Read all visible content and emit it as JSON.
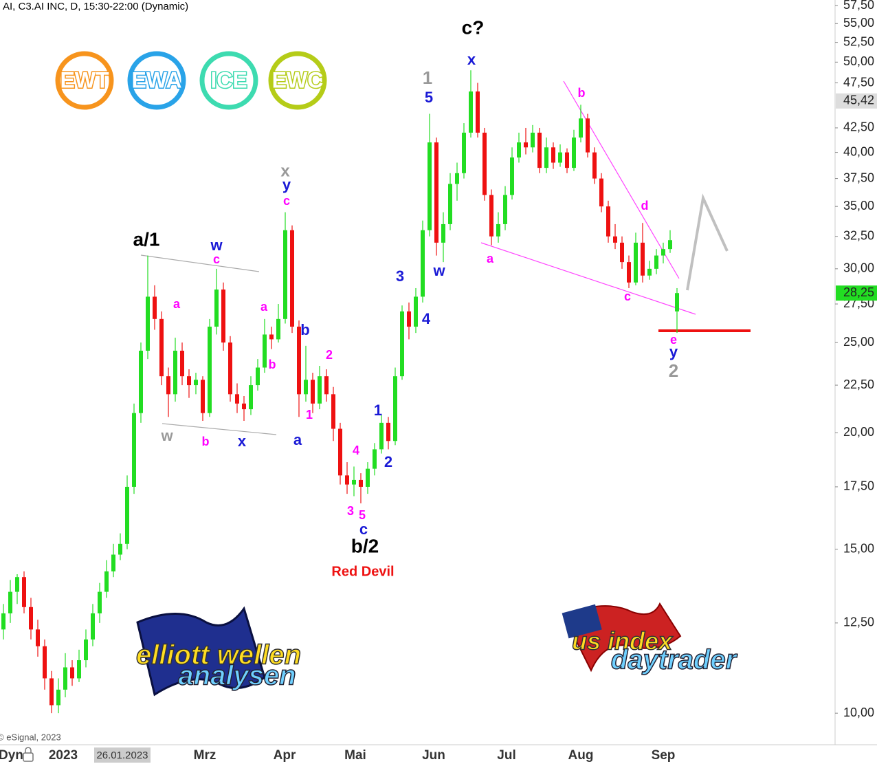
{
  "chart_data": {
    "type": "candlestick",
    "title": "AI, C3.AI INC, D, 15:30-22:00 (Dynamic)",
    "source": "© eSignal, 2023",
    "log_scale": true,
    "grid": false,
    "up_color": "#22dd22",
    "down_color": "#ee1111",
    "ylim": [
      9.25,
      58.3
    ],
    "yticks": [
      {
        "value": 10,
        "label": "10,00"
      },
      {
        "value": 12.5,
        "label": "12,50"
      },
      {
        "value": 15,
        "label": "15,00"
      },
      {
        "value": 17.5,
        "label": "17,50"
      },
      {
        "value": 20,
        "label": "20,00"
      },
      {
        "value": 22.5,
        "label": "22,50"
      },
      {
        "value": 25,
        "label": "25,00"
      },
      {
        "value": 27.5,
        "label": "27,50"
      },
      {
        "value": 30,
        "label": "30,00"
      },
      {
        "value": 32.5,
        "label": "32,50"
      },
      {
        "value": 35,
        "label": "35,00"
      },
      {
        "value": 37.5,
        "label": "37,50"
      },
      {
        "value": 40,
        "label": "40,00"
      },
      {
        "value": 42.5,
        "label": "42,50"
      },
      {
        "value": 47.5,
        "label": "47,50"
      },
      {
        "value": 50,
        "label": "50,00"
      },
      {
        "value": 52.5,
        "label": "52,50"
      },
      {
        "value": 55,
        "label": "55,00"
      },
      {
        "value": 57.5,
        "label": "57,50"
      }
    ],
    "price_markers": [
      {
        "value": 45.42,
        "label": "45,42",
        "color": "#dddddd"
      },
      {
        "value": 28.25,
        "label": "28,25",
        "color": "#22dd22"
      }
    ],
    "xticks": [
      "Dyn",
      "2023",
      "26.01.2023",
      "Mrz",
      "Apr",
      "Mai",
      "Jun",
      "Jul",
      "Aug",
      "Sep"
    ],
    "ohlc": [
      [
        12.3,
        13.1,
        12.0,
        12.8
      ],
      [
        12.8,
        13.9,
        12.5,
        13.5
      ],
      [
        13.5,
        14.1,
        13.1,
        14.0
      ],
      [
        14.0,
        14.2,
        12.8,
        13.0
      ],
      [
        13.0,
        13.3,
        12.0,
        12.3
      ],
      [
        12.3,
        12.6,
        11.5,
        11.8
      ],
      [
        11.8,
        12.0,
        10.6,
        10.9
      ],
      [
        10.9,
        11.1,
        10.0,
        10.2
      ],
      [
        10.2,
        10.9,
        10.0,
        10.6
      ],
      [
        10.6,
        11.6,
        10.4,
        11.2
      ],
      [
        11.2,
        11.4,
        10.7,
        10.9
      ],
      [
        10.9,
        11.7,
        10.8,
        11.4
      ],
      [
        11.4,
        12.3,
        11.2,
        12.0
      ],
      [
        12.0,
        13.1,
        11.8,
        12.8
      ],
      [
        12.8,
        13.8,
        12.5,
        13.5
      ],
      [
        13.5,
        14.6,
        13.3,
        14.2
      ],
      [
        14.2,
        15.2,
        14.0,
        14.8
      ],
      [
        14.8,
        15.6,
        14.6,
        15.2
      ],
      [
        15.2,
        18.0,
        15.0,
        17.5
      ],
      [
        17.5,
        21.5,
        17.2,
        21.0
      ],
      [
        21.0,
        25.0,
        20.5,
        24.5
      ],
      [
        24.5,
        31.0,
        24.0,
        28.0
      ],
      [
        28.0,
        28.8,
        25.8,
        26.5
      ],
      [
        26.5,
        27.0,
        22.5,
        23.0
      ],
      [
        23.0,
        23.5,
        20.8,
        22.0
      ],
      [
        22.0,
        25.3,
        21.6,
        24.5
      ],
      [
        24.5,
        25.0,
        22.5,
        23.0
      ],
      [
        23.0,
        23.4,
        21.8,
        22.5
      ],
      [
        22.5,
        23.2,
        22.0,
        22.8
      ],
      [
        22.8,
        23.0,
        20.6,
        21.0
      ],
      [
        21.0,
        26.5,
        20.8,
        26.0
      ],
      [
        26.0,
        30.0,
        25.5,
        28.5
      ],
      [
        28.5,
        29.0,
        24.5,
        25.0
      ],
      [
        25.0,
        25.4,
        21.6,
        22.0
      ],
      [
        22.0,
        22.6,
        21.0,
        21.5
      ],
      [
        21.5,
        21.9,
        20.6,
        21.2
      ],
      [
        21.2,
        23.0,
        20.9,
        22.5
      ],
      [
        22.5,
        24.0,
        22.2,
        23.5
      ],
      [
        23.5,
        26.5,
        23.2,
        25.5
      ],
      [
        25.5,
        26.0,
        24.6,
        25.2
      ],
      [
        25.2,
        27.5,
        25.0,
        26.5
      ],
      [
        26.5,
        34.5,
        26.2,
        33.0
      ],
      [
        33.0,
        33.4,
        25.6,
        26.0
      ],
      [
        26.0,
        26.4,
        20.8,
        22.0
      ],
      [
        22.0,
        24.8,
        21.6,
        22.8
      ],
      [
        22.8,
        23.2,
        21.0,
        21.5
      ],
      [
        21.5,
        23.6,
        21.2,
        23.0
      ],
      [
        23.0,
        23.4,
        21.6,
        22.0
      ],
      [
        22.0,
        22.4,
        19.6,
        20.2
      ],
      [
        20.2,
        20.5,
        17.6,
        18.0
      ],
      [
        18.0,
        18.6,
        17.2,
        17.6
      ],
      [
        17.6,
        18.4,
        17.1,
        17.8
      ],
      [
        17.8,
        18.1,
        16.8,
        17.5
      ],
      [
        17.5,
        18.6,
        17.2,
        18.3
      ],
      [
        18.3,
        19.5,
        18.0,
        19.2
      ],
      [
        19.2,
        20.9,
        19.0,
        20.5
      ],
      [
        20.5,
        20.8,
        19.2,
        19.6
      ],
      [
        19.6,
        23.5,
        19.4,
        23.0
      ],
      [
        23.0,
        27.4,
        22.8,
        27.0
      ],
      [
        27.0,
        27.6,
        25.2,
        26.0
      ],
      [
        26.0,
        28.6,
        25.6,
        28.0
      ],
      [
        28.0,
        33.8,
        27.6,
        33.0
      ],
      [
        33.0,
        44.0,
        32.5,
        41.0
      ],
      [
        41.0,
        41.5,
        31.0,
        32.0
      ],
      [
        32.0,
        34.5,
        30.5,
        33.5
      ],
      [
        33.5,
        38.0,
        33.0,
        37.0
      ],
      [
        37.0,
        39.0,
        35.5,
        38.0
      ],
      [
        38.0,
        43.0,
        37.5,
        42.0
      ],
      [
        42.0,
        49.0,
        41.5,
        46.5
      ],
      [
        46.5,
        47.5,
        41.5,
        42.0
      ],
      [
        42.0,
        42.5,
        35.5,
        36.0
      ],
      [
        36.0,
        36.5,
        31.8,
        32.5
      ],
      [
        32.5,
        34.5,
        32.0,
        33.5
      ],
      [
        33.5,
        36.8,
        33.0,
        36.0
      ],
      [
        36.0,
        40.5,
        35.6,
        39.5
      ],
      [
        39.5,
        42.0,
        39.0,
        41.0
      ],
      [
        41.0,
        42.5,
        39.8,
        40.5
      ],
      [
        40.5,
        42.8,
        40.0,
        42.0
      ],
      [
        42.0,
        42.5,
        38.0,
        38.5
      ],
      [
        38.5,
        41.5,
        38.0,
        40.5
      ],
      [
        40.5,
        41.0,
        38.4,
        39.0
      ],
      [
        39.0,
        40.8,
        38.6,
        40.0
      ],
      [
        40.0,
        40.4,
        38.0,
        38.5
      ],
      [
        38.5,
        42.3,
        38.2,
        41.5
      ],
      [
        41.5,
        45.0,
        41.0,
        43.5
      ],
      [
        43.5,
        44.0,
        39.5,
        40.0
      ],
      [
        40.0,
        40.5,
        37.0,
        37.5
      ],
      [
        37.5,
        38.0,
        34.5,
        35.0
      ],
      [
        35.0,
        35.5,
        32.0,
        32.5
      ],
      [
        32.5,
        33.5,
        31.5,
        32.0
      ],
      [
        32.0,
        32.5,
        30.0,
        30.5
      ],
      [
        30.5,
        31.0,
        28.6,
        29.0
      ],
      [
        29.0,
        32.8,
        28.8,
        32.0
      ],
      [
        32.0,
        33.6,
        29.0,
        29.5
      ],
      [
        29.5,
        30.6,
        29.2,
        30.0
      ],
      [
        30.0,
        31.5,
        29.6,
        31.0
      ],
      [
        31.0,
        32.0,
        30.4,
        31.5
      ],
      [
        31.5,
        33.0,
        31.2,
        32.2
      ],
      [
        27.0,
        28.6,
        25.6,
        28.25
      ]
    ],
    "annotations": [
      {
        "text": "c?",
        "color": "#000000"
      },
      {
        "text": "x",
        "color": "#1a1ad6"
      },
      {
        "text": "1",
        "color": "#999999"
      },
      {
        "text": "5",
        "color": "#1a1ad6"
      },
      {
        "text": "x",
        "color": "#999999"
      },
      {
        "text": "y",
        "color": "#1a1ad6"
      },
      {
        "text": "c",
        "color": "#ff00ff"
      },
      {
        "text": "a/1",
        "color": "#000000"
      },
      {
        "text": "w",
        "color": "#1a1ad6"
      },
      {
        "text": "c",
        "color": "#ff00ff"
      },
      {
        "text": "a",
        "color": "#ff00ff"
      },
      {
        "text": "a",
        "color": "#ff00ff"
      },
      {
        "text": "b",
        "color": "#1a1ad6"
      },
      {
        "text": "b",
        "color": "#ff00ff"
      },
      {
        "text": "2",
        "color": "#ff00ff"
      },
      {
        "text": "3",
        "color": "#1a1ad6"
      },
      {
        "text": "4",
        "color": "#1a1ad6"
      },
      {
        "text": "w",
        "color": "#1a1ad6"
      },
      {
        "text": "b",
        "color": "#ff00ff"
      },
      {
        "text": "d",
        "color": "#ff00ff"
      },
      {
        "text": "a",
        "color": "#ff00ff"
      },
      {
        "text": "c",
        "color": "#ff00ff"
      },
      {
        "text": "e",
        "color": "#ff00ff"
      },
      {
        "text": "y",
        "color": "#1a1ad6"
      },
      {
        "text": "2",
        "color": "#999999"
      },
      {
        "text": "w",
        "color": "#999999"
      },
      {
        "text": "b",
        "color": "#ff00ff"
      },
      {
        "text": "x",
        "color": "#1a1ad6"
      },
      {
        "text": "1",
        "color": "#ff00ff"
      },
      {
        "text": "a",
        "color": "#1a1ad6"
      },
      {
        "text": "1",
        "color": "#1a1ad6"
      },
      {
        "text": "2",
        "color": "#1a1ad6"
      },
      {
        "text": "4",
        "color": "#ff00ff"
      },
      {
        "text": "3",
        "color": "#ff00ff"
      },
      {
        "text": "5",
        "color": "#ff00ff"
      },
      {
        "text": "c",
        "color": "#1a1ad6"
      },
      {
        "text": "b/2",
        "color": "#000000"
      },
      {
        "text": "Red Devil",
        "color": "#ee1111"
      }
    ],
    "badges": [
      {
        "text": "EWT",
        "color": "#f7941d"
      },
      {
        "text": "EWA",
        "color": "#29a3e8"
      },
      {
        "text": "ICE",
        "color": "#3ddbb0"
      },
      {
        "text": "EWC",
        "color": "#b5cc18"
      }
    ],
    "logos": [
      "elliott wellen",
      "analysen",
      "us index",
      "daytrader"
    ]
  }
}
